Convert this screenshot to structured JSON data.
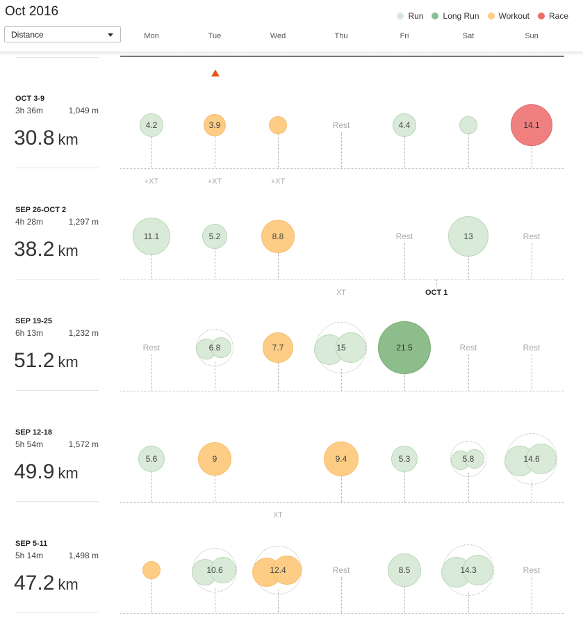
{
  "header": {
    "title": "Oct 2016",
    "metric_select": {
      "value": "Distance"
    },
    "legend": [
      {
        "label": "Run",
        "color": "#d6e9d5"
      },
      {
        "label": "Long Run",
        "color": "#8fbf8c"
      },
      {
        "label": "Workout",
        "color": "#fdcd86"
      },
      {
        "label": "Race",
        "color": "#ef6b6b"
      }
    ],
    "days": [
      "Mon",
      "Tue",
      "Wed",
      "Thu",
      "Fri",
      "Sat",
      "Sun"
    ]
  },
  "styles": {
    "run": {
      "fill": "#d9ead8",
      "stroke": "#b9d7b7"
    },
    "long_run": {
      "fill": "#8dbd8a",
      "stroke": "#7bab78"
    },
    "workout": {
      "fill": "#fdcd86",
      "stroke": "#f6bd6c"
    },
    "race": {
      "fill": "#f08080",
      "stroke": "#e06868"
    }
  },
  "weeks": [
    {
      "range": "OCT 3-9",
      "time": "3h 36m",
      "elevation": "1,049 m",
      "total": "30.8",
      "unit": "km",
      "days": [
        {
          "type": "run",
          "label": "4.2"
        },
        {
          "type": "workout",
          "label": "3.9"
        },
        {
          "type": "workout",
          "label": ""
        },
        {
          "type": "rest",
          "label": "Rest"
        },
        {
          "type": "run",
          "label": "4.4"
        },
        {
          "type": "run",
          "label": ""
        },
        {
          "type": "race",
          "label": "14.1"
        }
      ],
      "xt": [
        {
          "day": 0,
          "label": "+XT"
        },
        {
          "day": 1,
          "label": "+XT"
        },
        {
          "day": 2,
          "label": "+XT"
        }
      ]
    },
    {
      "range": "SEP 26-OCT 2",
      "time": "4h 28m",
      "elevation": "1,297 m",
      "total": "38.2",
      "unit": "km",
      "days": [
        {
          "type": "run",
          "label": "11.1"
        },
        {
          "type": "run",
          "label": "5.2"
        },
        {
          "type": "workout",
          "label": "8.8"
        },
        {
          "type": "none",
          "label": ""
        },
        {
          "type": "rest",
          "label": "Rest"
        },
        {
          "type": "run",
          "label": "13"
        },
        {
          "type": "rest",
          "label": "Rest"
        }
      ],
      "xt": [
        {
          "day": 3,
          "label": "XT"
        }
      ],
      "month_marker": {
        "day": 5,
        "label": "OCT 1"
      }
    },
    {
      "range": "SEP 19-25",
      "time": "6h 13m",
      "elevation": "1,232 m",
      "total": "51.2",
      "unit": "km",
      "days": [
        {
          "type": "rest",
          "label": "Rest"
        },
        {
          "type": "run",
          "label": "6.8",
          "multi": true
        },
        {
          "type": "workout",
          "label": "7.7"
        },
        {
          "type": "run",
          "label": "15",
          "multi": true
        },
        {
          "type": "long_run",
          "label": "21.5"
        },
        {
          "type": "rest",
          "label": "Rest"
        },
        {
          "type": "rest",
          "label": "Rest"
        }
      ],
      "xt": []
    },
    {
      "range": "SEP 12-18",
      "time": "5h 54m",
      "elevation": "1,572 m",
      "total": "49.9",
      "unit": "km",
      "days": [
        {
          "type": "run",
          "label": "5.6"
        },
        {
          "type": "workout",
          "label": "9"
        },
        {
          "type": "none",
          "label": ""
        },
        {
          "type": "workout",
          "label": "9.4"
        },
        {
          "type": "run",
          "label": "5.3"
        },
        {
          "type": "run",
          "label": "5.8",
          "multi": true
        },
        {
          "type": "run",
          "label": "14.6",
          "multi": true
        }
      ],
      "xt": [
        {
          "day": 2,
          "label": "XT"
        }
      ]
    },
    {
      "range": "SEP 5-11",
      "time": "5h 14m",
      "elevation": "1,498 m",
      "total": "47.2",
      "unit": "km",
      "days": [
        {
          "type": "workout",
          "label": ""
        },
        {
          "type": "run",
          "label": "10.6",
          "multi": true
        },
        {
          "type": "workout",
          "label": "12.4",
          "multi": true
        },
        {
          "type": "rest",
          "label": "Rest"
        },
        {
          "type": "run",
          "label": "8.5"
        },
        {
          "type": "run",
          "label": "14.3",
          "multi": true
        },
        {
          "type": "rest",
          "label": "Rest"
        }
      ],
      "xt": []
    }
  ]
}
